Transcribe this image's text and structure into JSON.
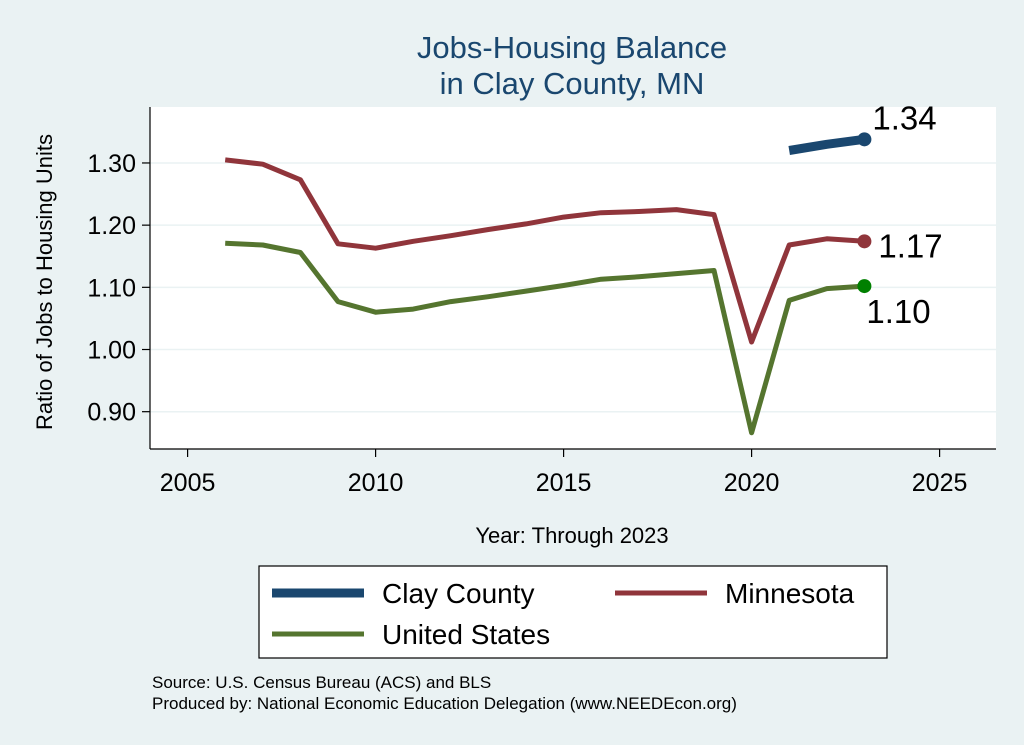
{
  "chart_data": {
    "type": "line",
    "title": [
      "Jobs-Housing Balance",
      "in Clay County, MN"
    ],
    "xlabel": "Year: Through 2023",
    "ylabel": "Ratio of Jobs to Housing Units",
    "xlim": [
      2004,
      2026.5
    ],
    "ylim": [
      0.84,
      1.39
    ],
    "xticks": [
      2005,
      2010,
      2015,
      2020,
      2025
    ],
    "yticks": [
      0.9,
      1.0,
      1.1,
      1.2,
      1.3
    ],
    "ytick_labels": [
      "0.90",
      "1.00",
      "1.10",
      "1.20",
      "1.30"
    ],
    "grid": true,
    "legend_position": "bottom",
    "series": [
      {
        "name": "Clay County",
        "color": "#1a476f",
        "x": [
          2021,
          2022,
          2023
        ],
        "y": [
          1.32,
          1.33,
          1.338
        ],
        "end_label": "1.34"
      },
      {
        "name": "Minnesota",
        "color": "#90353b",
        "x": [
          2006,
          2007,
          2008,
          2009,
          2010,
          2011,
          2012,
          2013,
          2014,
          2015,
          2016,
          2017,
          2018,
          2019,
          2020,
          2021,
          2022,
          2023
        ],
        "y": [
          1.305,
          1.298,
          1.273,
          1.17,
          1.163,
          1.174,
          1.183,
          1.193,
          1.202,
          1.213,
          1.22,
          1.222,
          1.225,
          1.217,
          1.012,
          1.168,
          1.178,
          1.174
        ],
        "end_label": "1.17"
      },
      {
        "name": "United States",
        "color": "#55752f",
        "x": [
          2006,
          2007,
          2008,
          2009,
          2010,
          2011,
          2012,
          2013,
          2014,
          2015,
          2016,
          2017,
          2018,
          2019,
          2020,
          2021,
          2022,
          2023
        ],
        "y": [
          1.171,
          1.168,
          1.156,
          1.077,
          1.06,
          1.065,
          1.077,
          1.085,
          1.094,
          1.103,
          1.113,
          1.117,
          1.122,
          1.127,
          0.866,
          1.079,
          1.098,
          1.102
        ],
        "end_label": "1.10",
        "marker_color": "#008000"
      }
    ],
    "legend": {
      "rows": [
        [
          "Clay County",
          "Minnesota"
        ],
        [
          "United States"
        ]
      ]
    }
  },
  "source_note": "Source: U.S. Census Bureau (ACS) and BLS",
  "producer_note": "Produced by: National Economic Education Delegation (www.NEEDEcon.org)"
}
